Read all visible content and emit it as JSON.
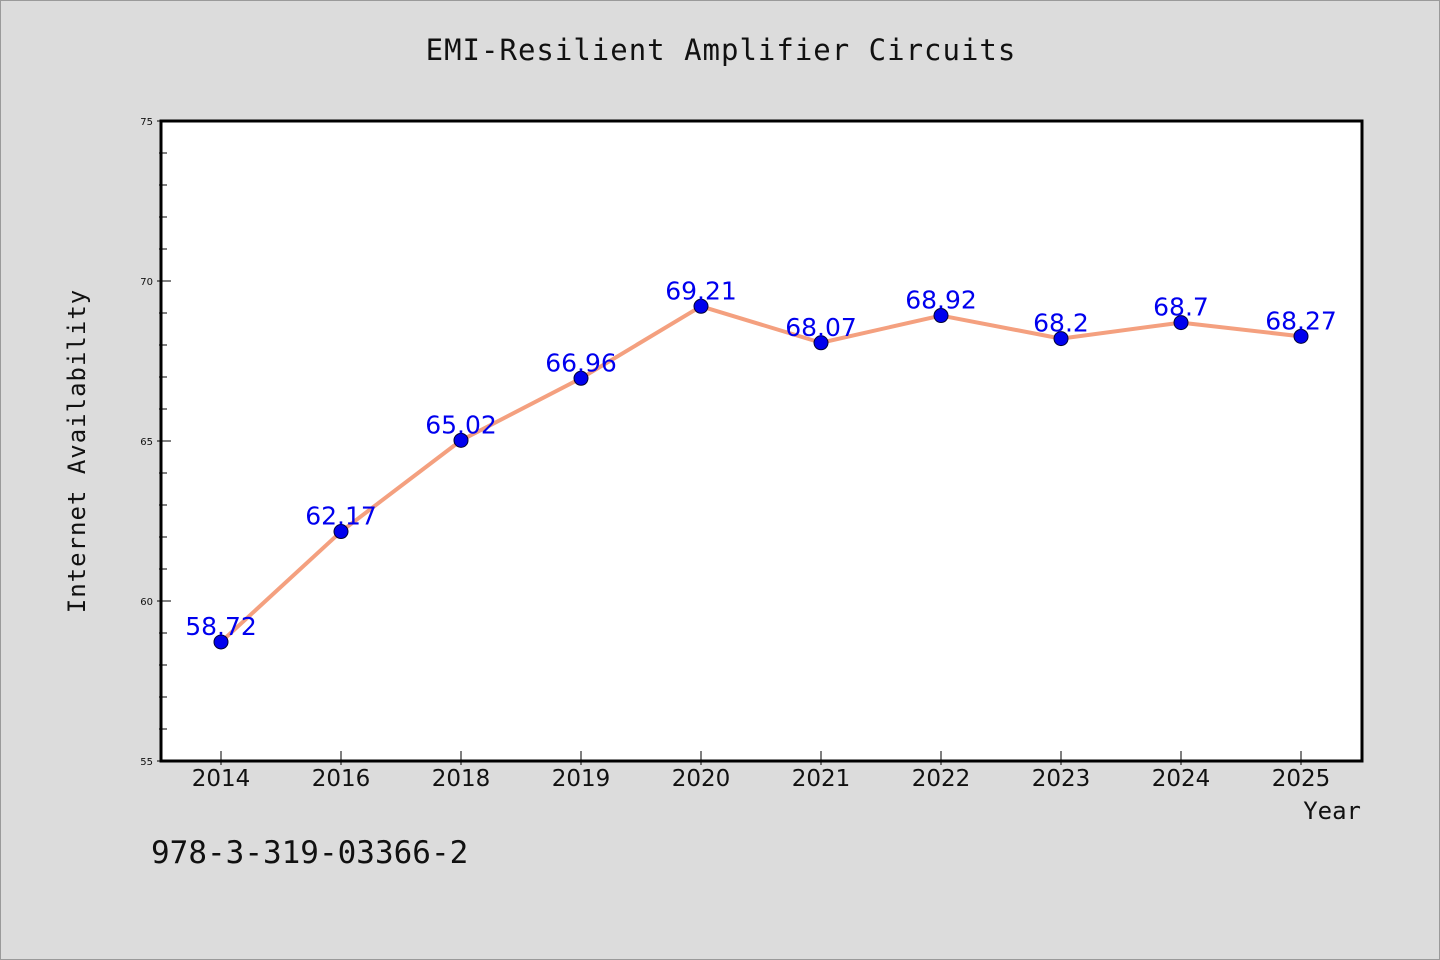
{
  "chart_data": {
    "type": "line",
    "title": "EMI-Resilient Amplifier Circuits",
    "xlabel": "Year",
    "ylabel": "Internet Availability",
    "categories": [
      "2014",
      "2016",
      "2018",
      "2019",
      "2020",
      "2021",
      "2022",
      "2023",
      "2024",
      "2025"
    ],
    "series": [
      {
        "values": [
          58.72,
          62.17,
          65.02,
          66.96,
          69.21,
          68.07,
          68.92,
          68.2,
          68.7,
          68.27
        ],
        "data_labels": [
          "58.72",
          "62.17",
          "65.02",
          "66.96",
          "69.21",
          "68.07",
          "68.92",
          "68.2",
          "68.7",
          "68.27"
        ],
        "line_color": "#f4a07f",
        "marker_color": "#0000ee"
      }
    ],
    "ylim": [
      55,
      75
    ],
    "yticks": [
      "55",
      "60",
      "65",
      "70",
      "75"
    ],
    "grid": false,
    "legend": "none"
  },
  "footnote": "978-3-319-03366-2",
  "colors": {
    "background": "#dcdcdc",
    "plot_background": "#ffffff",
    "line": "#f4a07f",
    "marker": "#0000ee",
    "data_label": "#0000ee"
  }
}
